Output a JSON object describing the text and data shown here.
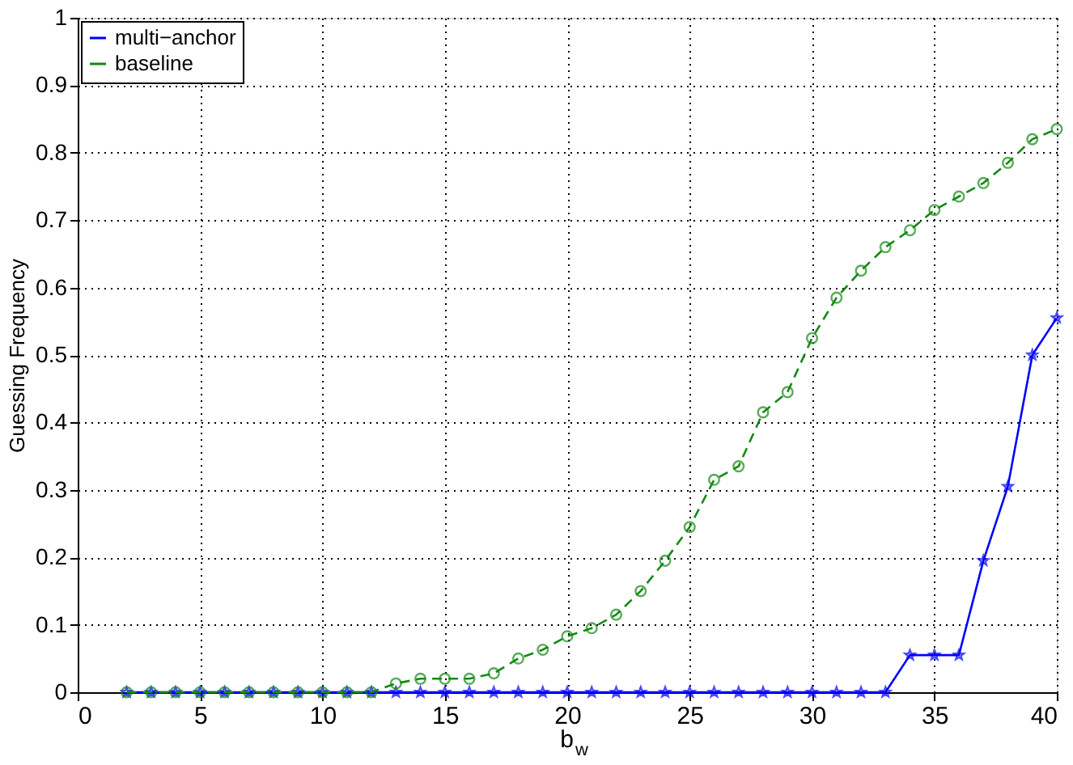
{
  "chart_data": {
    "type": "line",
    "xlabel": "b$_{w}$",
    "ylabel": "Guessing Frequency",
    "x": [
      2,
      3,
      4,
      5,
      6,
      7,
      8,
      9,
      10,
      11,
      12,
      13,
      14,
      15,
      16,
      17,
      18,
      19,
      20,
      21,
      22,
      23,
      24,
      25,
      26,
      27,
      28,
      29,
      30,
      31,
      32,
      33,
      34,
      35,
      36,
      37,
      38,
      39,
      40
    ],
    "series": [
      {
        "name": "multi−anchor",
        "color": "#0000ff",
        "marker": "star",
        "line_style": "solid",
        "values": [
          0,
          0,
          0,
          0,
          0,
          0,
          0,
          0,
          0,
          0,
          0,
          0,
          0,
          0,
          0,
          0,
          0,
          0,
          0,
          0,
          0,
          0,
          0,
          0,
          0,
          0,
          0,
          0,
          0,
          0,
          0,
          0,
          0.055,
          0.055,
          0.055,
          0.195,
          0.305,
          0.5,
          0.555
        ]
      },
      {
        "name": "baseline",
        "color": "#138a13",
        "marker": "circle",
        "line_style": "dashed",
        "values": [
          0,
          0,
          0,
          0,
          0,
          0,
          0,
          0,
          0,
          0,
          0,
          0.013,
          0.02,
          0.02,
          0.02,
          0.028,
          0.05,
          0.063,
          0.083,
          0.095,
          0.115,
          0.15,
          0.195,
          0.245,
          0.315,
          0.335,
          0.415,
          0.445,
          0.525,
          0.585,
          0.625,
          0.66,
          0.685,
          0.715,
          0.735,
          0.755,
          0.785,
          0.82,
          0.835
        ]
      }
    ],
    "xlim": [
      0,
      40
    ],
    "ylim": [
      0,
      1
    ],
    "xticks": [
      0,
      5,
      10,
      15,
      20,
      25,
      30,
      35,
      40
    ],
    "yticks": [
      0,
      0.1,
      0.2,
      0.3,
      0.4,
      0.5,
      0.6,
      0.7,
      0.8,
      0.9,
      1
    ],
    "grid": true,
    "legend": "top left"
  }
}
